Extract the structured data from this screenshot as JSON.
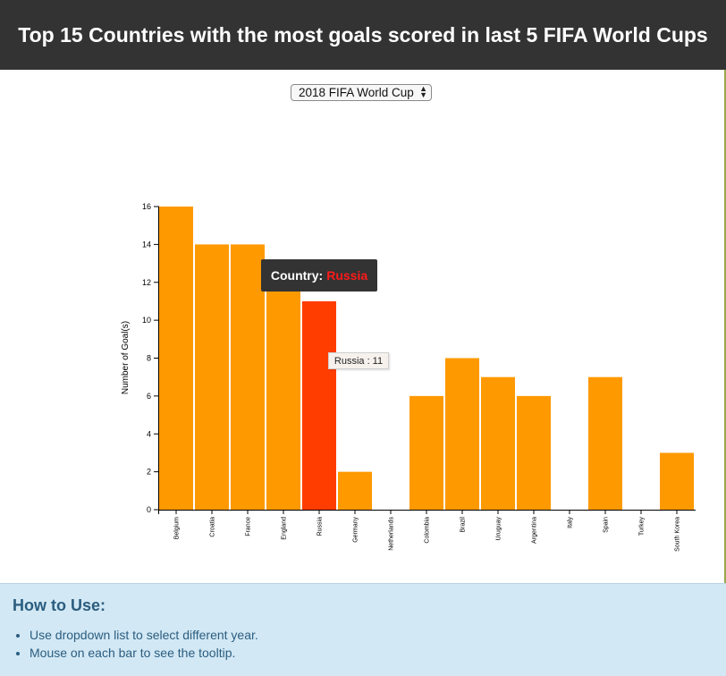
{
  "header": {
    "title": "Top 15 Countries with the most goals scored in last 5 FIFA World Cups"
  },
  "controls": {
    "year_select": {
      "selected": "2018 FIFA World Cup"
    }
  },
  "chart_data": {
    "type": "bar",
    "title": "",
    "xlabel": "",
    "ylabel": "Number of Goal(s)",
    "ylim": [
      0,
      16
    ],
    "yticks": [
      0,
      2,
      4,
      6,
      8,
      10,
      12,
      14,
      16
    ],
    "grid": false,
    "categories": [
      "Belgium",
      "Croatia",
      "France",
      "England",
      "Russia",
      "Germany",
      "Netherlands",
      "Colombia",
      "Brazil",
      "Uruguay",
      "Argentina",
      "Italy",
      "Spain",
      "Turkey",
      "South Korea"
    ],
    "values": [
      16,
      14,
      14,
      12,
      11,
      2,
      0,
      6,
      8,
      7,
      6,
      0,
      7,
      0,
      3
    ],
    "highlighted": "Russia",
    "colors": {
      "bar": "#ff9900",
      "highlight": "#ff3d00"
    }
  },
  "tooltip": {
    "country_label": "Country:",
    "country_value": "Russia",
    "hover_text": "Russia : 11"
  },
  "howto": {
    "title": "How to Use:",
    "items": [
      "Use dropdown list to select different year.",
      "Mouse on each bar to see the tooltip."
    ]
  }
}
